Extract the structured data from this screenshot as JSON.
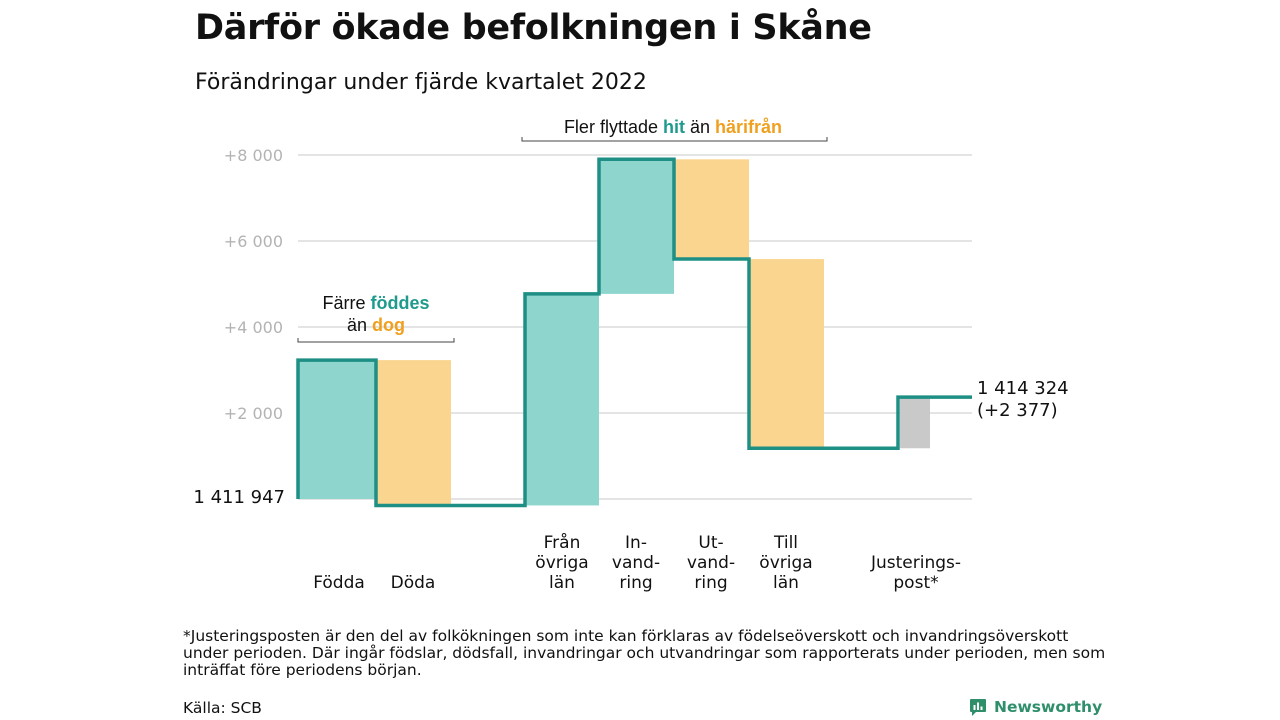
{
  "title": "Därför ökade befolkningen i Skåne",
  "subtitle": "Förändringar under fjärde kvartalet 2022",
  "footnote": "*Justeringsposten är den del av folkökningen som inte kan förklaras av födelseöverskott och invandringsöverskott under perioden. Där ingår födslar, dödsfall, invandringar och utvandringar som rapporterats under perioden, men som inträffat före periodens början.",
  "source": "Källa: SCB",
  "brand": "Newsworthy",
  "colors": {
    "line": "#1e8f84",
    "positive": "#8dd5cd",
    "negative": "#fad58f",
    "adjustment": "#c9c9c9",
    "grid": "#dcdcdc",
    "tick": "#b3b3b3",
    "teal_text": "#1e9b8d",
    "orange_text": "#f0a020"
  },
  "chart_data": {
    "type": "waterfall",
    "baseline": 1411947,
    "start_label": "1 411 947",
    "end_label": [
      "1 414 324",
      "(+2 377)"
    ],
    "y_range": [
      -150,
      8200
    ],
    "y_ticks": [
      {
        "value": 2000,
        "label": "+2 000"
      },
      {
        "value": 4000,
        "label": "+4 000"
      },
      {
        "value": 6000,
        "label": "+6 000"
      },
      {
        "value": 8000,
        "label": "+8 000"
      }
    ],
    "grid": true,
    "steps": [
      {
        "name": "Födda",
        "label_lines": [
          "Födda"
        ],
        "value": 3230,
        "kind": "positive"
      },
      {
        "name": "Döda",
        "label_lines": [
          "Döda"
        ],
        "value": -3380,
        "kind": "negative"
      },
      {
        "name": "Från övriga län",
        "label_lines": [
          "Från",
          "övriga",
          "län"
        ],
        "value": 4920,
        "kind": "positive"
      },
      {
        "name": "Invandring",
        "label_lines": [
          "In-",
          "vand-",
          "ring"
        ],
        "value": 3130,
        "kind": "positive"
      },
      {
        "name": "Utvandring",
        "label_lines": [
          "Ut-",
          "vand-",
          "ring"
        ],
        "value": -2320,
        "kind": "negative"
      },
      {
        "name": "Till övriga län",
        "label_lines": [
          "Till",
          "övriga",
          "län"
        ],
        "value": -4400,
        "kind": "negative"
      },
      {
        "name": "Justeringspost*",
        "label_lines": [
          "Justerings-",
          "post*"
        ],
        "value": 1190,
        "kind": "adjustment"
      }
    ],
    "annotations": [
      {
        "parts": [
          {
            "text": "Färre ",
            "style": "plain"
          },
          {
            "text": "föddes",
            "style": "teal"
          }
        ],
        "line2": [
          {
            "text": "än ",
            "style": "plain"
          },
          {
            "text": "dog",
            "style": "orange"
          }
        ]
      },
      {
        "parts": [
          {
            "text": "Fler flyttade ",
            "style": "plain"
          },
          {
            "text": "hit",
            "style": "teal"
          },
          {
            "text": " än ",
            "style": "plain"
          },
          {
            "text": "härifrån",
            "style": "orange"
          }
        ]
      }
    ]
  }
}
